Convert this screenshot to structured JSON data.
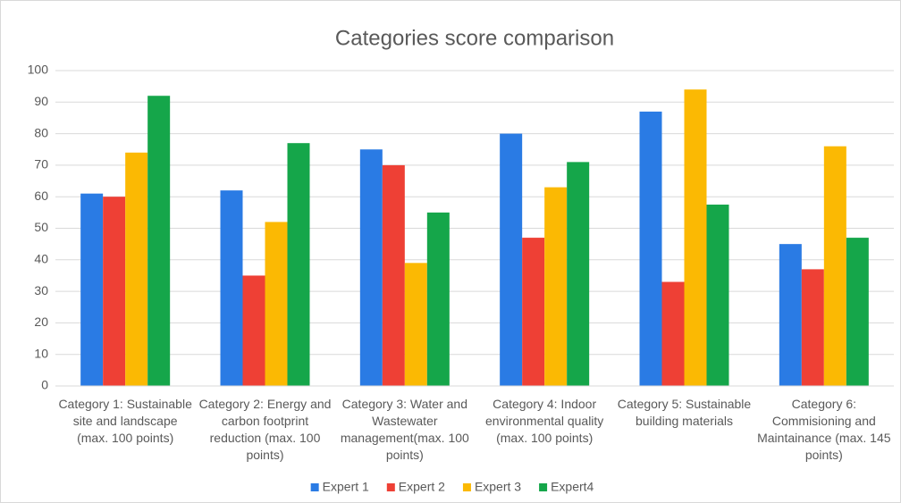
{
  "chart_data": {
    "type": "bar",
    "title": "Categories score comparison",
    "categories": [
      "Category 1: Sustainable site and landscape (max. 100 points)",
      "Category 2: Energy and carbon footprint reduction (max. 100 points)",
      "Category 3: Water and Wastewater management(max. 100 points)",
      "Category 4: Indoor environmental quality (max. 100 points)",
      "Category 5: Sustainable building materials",
      "Category 6: Commisioning and Maintainance (max. 145 points)"
    ],
    "series": [
      {
        "name": "Expert 1",
        "color": "#2a7be4",
        "values": [
          61,
          62,
          75,
          80,
          87,
          45
        ]
      },
      {
        "name": "Expert 2",
        "color": "#ee4035",
        "values": [
          60,
          35,
          70,
          47,
          33,
          37
        ]
      },
      {
        "name": "Expert 3",
        "color": "#fbb903",
        "values": [
          74,
          52,
          39,
          63,
          94,
          76
        ]
      },
      {
        "name": "Expert4",
        "color": "#15a64a",
        "values": [
          92,
          77,
          55,
          71,
          57.5,
          47
        ]
      }
    ],
    "ylim": [
      0,
      100
    ],
    "yticks": [
      0,
      10,
      20,
      30,
      40,
      50,
      60,
      70,
      80,
      90,
      100
    ],
    "grid": true,
    "legend": "bottom"
  }
}
